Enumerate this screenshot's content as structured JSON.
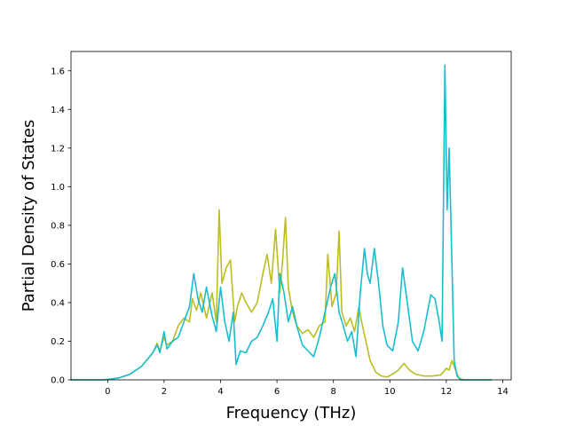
{
  "chart_data": {
    "type": "line",
    "title": "",
    "xlabel": "Frequency (THz)",
    "ylabel": "Partial Density of States",
    "xlim": [
      -1.3,
      14.3
    ],
    "ylim": [
      0.0,
      1.7
    ],
    "xticks": [
      0,
      2,
      4,
      6,
      8,
      10,
      12,
      14
    ],
    "xtick_labels": [
      "0",
      "2",
      "4",
      "6",
      "8",
      "10",
      "12",
      "14"
    ],
    "yticks": [
      0.0,
      0.2,
      0.4,
      0.6,
      0.8,
      1.0,
      1.2,
      1.4,
      1.6
    ],
    "ytick_labels": [
      "0.0",
      "0.2",
      "0.4",
      "0.6",
      "0.8",
      "1.0",
      "1.2",
      "1.4",
      "1.6"
    ],
    "grid": false,
    "legend": "none",
    "series": [
      {
        "color": "#bcbd22",
        "x": [
          -1.3,
          -0.2,
          0,
          0.4,
          0.8,
          1.2,
          1.6,
          1.75,
          1.85,
          2.0,
          2.1,
          2.3,
          2.5,
          2.7,
          2.9,
          3.0,
          3.15,
          3.3,
          3.5,
          3.7,
          3.85,
          3.95,
          4.05,
          4.2,
          4.35,
          4.5,
          4.6,
          4.75,
          4.9,
          5.1,
          5.3,
          5.5,
          5.65,
          5.8,
          5.95,
          6.1,
          6.2,
          6.3,
          6.4,
          6.55,
          6.7,
          6.9,
          7.1,
          7.3,
          7.5,
          7.7,
          7.8,
          7.95,
          8.1,
          8.2,
          8.3,
          8.45,
          8.6,
          8.75,
          8.9,
          9.0,
          9.15,
          9.3,
          9.5,
          9.7,
          9.9,
          10.1,
          10.3,
          10.5,
          10.7,
          10.9,
          11.2,
          11.5,
          11.8,
          12.0,
          12.1,
          12.2,
          12.3,
          12.45,
          12.6,
          13.6
        ],
        "y": [
          0.0,
          0.0,
          0.002,
          0.01,
          0.03,
          0.07,
          0.14,
          0.19,
          0.15,
          0.22,
          0.18,
          0.2,
          0.28,
          0.32,
          0.3,
          0.42,
          0.36,
          0.45,
          0.32,
          0.45,
          0.3,
          0.88,
          0.5,
          0.58,
          0.62,
          0.3,
          0.38,
          0.45,
          0.4,
          0.35,
          0.4,
          0.55,
          0.65,
          0.5,
          0.78,
          0.45,
          0.62,
          0.84,
          0.48,
          0.35,
          0.28,
          0.24,
          0.26,
          0.22,
          0.28,
          0.3,
          0.65,
          0.38,
          0.45,
          0.77,
          0.35,
          0.28,
          0.32,
          0.25,
          0.38,
          0.3,
          0.2,
          0.1,
          0.04,
          0.02,
          0.015,
          0.03,
          0.05,
          0.085,
          0.05,
          0.03,
          0.02,
          0.02,
          0.025,
          0.06,
          0.05,
          0.1,
          0.06,
          0.01,
          0.0,
          0.0
        ]
      },
      {
        "color": "#17becf",
        "x": [
          -1.3,
          -0.2,
          0,
          0.4,
          0.8,
          1.2,
          1.6,
          1.75,
          1.85,
          2.0,
          2.1,
          2.3,
          2.5,
          2.7,
          2.9,
          3.05,
          3.2,
          3.35,
          3.5,
          3.7,
          3.85,
          4.0,
          4.15,
          4.3,
          4.45,
          4.55,
          4.7,
          4.9,
          5.1,
          5.3,
          5.5,
          5.7,
          5.85,
          6.0,
          6.1,
          6.25,
          6.4,
          6.55,
          6.7,
          6.9,
          7.1,
          7.3,
          7.5,
          7.7,
          7.9,
          8.05,
          8.2,
          8.35,
          8.5,
          8.65,
          8.8,
          8.95,
          9.1,
          9.2,
          9.3,
          9.45,
          9.6,
          9.75,
          9.9,
          10.1,
          10.3,
          10.45,
          10.6,
          10.8,
          11.0,
          11.2,
          11.45,
          11.6,
          11.75,
          11.85,
          11.95,
          12.03,
          12.1,
          12.2,
          12.28,
          12.38,
          12.5,
          13.6
        ],
        "y": [
          0.0,
          0.0,
          0.002,
          0.01,
          0.03,
          0.07,
          0.14,
          0.18,
          0.14,
          0.25,
          0.16,
          0.2,
          0.22,
          0.3,
          0.38,
          0.55,
          0.42,
          0.35,
          0.48,
          0.33,
          0.25,
          0.48,
          0.3,
          0.2,
          0.35,
          0.08,
          0.15,
          0.14,
          0.2,
          0.22,
          0.28,
          0.35,
          0.42,
          0.2,
          0.55,
          0.45,
          0.3,
          0.38,
          0.28,
          0.18,
          0.15,
          0.12,
          0.22,
          0.35,
          0.48,
          0.55,
          0.35,
          0.28,
          0.2,
          0.25,
          0.12,
          0.45,
          0.68,
          0.55,
          0.5,
          0.68,
          0.5,
          0.28,
          0.18,
          0.15,
          0.3,
          0.58,
          0.42,
          0.2,
          0.15,
          0.25,
          0.44,
          0.42,
          0.3,
          0.2,
          1.63,
          0.88,
          1.2,
          0.6,
          0.1,
          0.02,
          0.0,
          0.0
        ]
      }
    ]
  }
}
